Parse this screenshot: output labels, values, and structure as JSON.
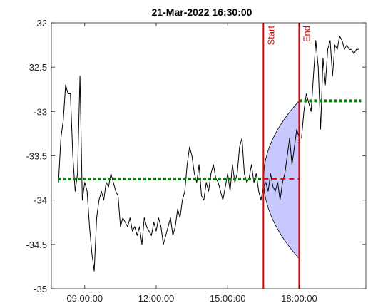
{
  "chart_data": {
    "type": "line",
    "title": "21-Mar-2022 16:30:00",
    "xlabel": "",
    "ylabel": "",
    "x_unit": "hours",
    "xlim": [
      7.6,
      20.8
    ],
    "ylim": [
      -35,
      -32
    ],
    "xticks": [
      {
        "value": 9,
        "label": "09:00:00"
      },
      {
        "value": 12,
        "label": "12:00:00"
      },
      {
        "value": 15,
        "label": "15:00:00"
      },
      {
        "value": 18,
        "label": "18:00:00"
      }
    ],
    "yticks": [
      {
        "value": -32,
        "label": "-32"
      },
      {
        "value": -32.5,
        "label": "-32.5"
      },
      {
        "value": -33,
        "label": "-33"
      },
      {
        "value": -33.5,
        "label": "-33.5"
      },
      {
        "value": -34,
        "label": "-34"
      },
      {
        "value": -34.5,
        "label": "-34.5"
      },
      {
        "value": -35,
        "label": "-35"
      }
    ],
    "grid": false,
    "series": [
      {
        "color": "#000000",
        "x": [
          7.9,
          8.0,
          8.1,
          8.2,
          8.3,
          8.4,
          8.5,
          8.6,
          8.7,
          8.8,
          8.9,
          9.0,
          9.1,
          9.2,
          9.3,
          9.4,
          9.5,
          9.6,
          9.7,
          9.8,
          9.9,
          10.0,
          10.1,
          10.2,
          10.3,
          10.4,
          10.5,
          10.6,
          10.7,
          10.8,
          10.9,
          11.0,
          11.1,
          11.2,
          11.3,
          11.4,
          11.5,
          11.6,
          11.7,
          11.8,
          11.9,
          12.0,
          12.1,
          12.2,
          12.3,
          12.4,
          12.5,
          12.6,
          12.7,
          12.8,
          12.9,
          13.0,
          13.1,
          13.2,
          13.3,
          13.4,
          13.5,
          13.6,
          13.7,
          13.8,
          13.9,
          14.0,
          14.1,
          14.2,
          14.3,
          14.4,
          14.5,
          14.6,
          14.7,
          14.8,
          14.9,
          15.0,
          15.1,
          15.2,
          15.3,
          15.4,
          15.5,
          15.6,
          15.7,
          15.8,
          15.9,
          16.0,
          16.1,
          16.2,
          16.3,
          16.4,
          16.5,
          16.6,
          16.7,
          16.8,
          16.9,
          17.0,
          17.1,
          17.2,
          17.3,
          17.4,
          17.5,
          17.6,
          17.7,
          17.8,
          17.9,
          18.0,
          18.1,
          18.2,
          18.3,
          18.4,
          18.5,
          18.6,
          18.7,
          18.8,
          18.9,
          19.0,
          19.1,
          19.2,
          19.3,
          19.4,
          19.5,
          19.6,
          19.7,
          19.8,
          19.9,
          20.0,
          20.1,
          20.2,
          20.3,
          20.4,
          20.5
        ],
        "y": [
          -33.8,
          -33.3,
          -33.1,
          -32.7,
          -32.8,
          -32.8,
          -33.5,
          -33.9,
          -33.7,
          -32.6,
          -34.0,
          -33.8,
          -33.9,
          -34.3,
          -34.6,
          -34.8,
          -34.2,
          -34.0,
          -33.9,
          -34.0,
          -33.8,
          -33.85,
          -33.7,
          -33.8,
          -33.9,
          -33.95,
          -34.3,
          -34.2,
          -34.25,
          -34.3,
          -34.2,
          -34.35,
          -34.3,
          -34.4,
          -34.3,
          -34.5,
          -34.2,
          -34.3,
          -34.35,
          -34.4,
          -34.25,
          -34.35,
          -34.2,
          -34.3,
          -34.5,
          -34.4,
          -34.3,
          -34.2,
          -34.4,
          -34.3,
          -34.1,
          -34.2,
          -34.0,
          -33.9,
          -33.6,
          -33.4,
          -33.5,
          -33.7,
          -33.8,
          -33.6,
          -33.95,
          -34.0,
          -33.8,
          -33.9,
          -33.7,
          -33.6,
          -33.75,
          -33.8,
          -33.9,
          -34.0,
          -33.85,
          -33.7,
          -33.9,
          -33.6,
          -33.8,
          -33.7,
          -33.4,
          -33.3,
          -33.7,
          -33.8,
          -33.75,
          -33.6,
          -33.8,
          -33.7,
          -33.9,
          -34.0,
          -33.85,
          -33.8,
          -33.9,
          -33.7,
          -33.85,
          -33.9,
          -33.8,
          -34.0,
          -33.8,
          -33.7,
          -33.5,
          -33.3,
          -33.6,
          -33.4,
          -33.2,
          -33.3,
          -33.3,
          -33.0,
          -32.8,
          -32.9,
          -33.0,
          -32.6,
          -32.2,
          -32.5,
          -33.2,
          -32.4,
          -32.7,
          -32.3,
          -32.2,
          -32.6,
          -32.25,
          -32.3,
          -32.15,
          -32.2,
          -32.3,
          -32.25,
          -32.3,
          -32.3,
          -32.35,
          -32.3,
          -32.3
        ]
      }
    ],
    "mean_lines": [
      {
        "color": "#008000",
        "x": [
          7.9,
          16.5
        ],
        "y": -33.76
      },
      {
        "color": "#008000",
        "x": [
          18.0,
          20.6
        ],
        "y": -32.88
      }
    ],
    "forecast_line": {
      "color": "#e00000",
      "x": [
        16.5,
        18.0
      ],
      "y": -33.76
    },
    "forecast_cone": {
      "color": "#c8c8ff",
      "x_start": 16.5,
      "x_end": 18.0,
      "upper_end": -32.88,
      "lower_end": -34.66
    },
    "markers": [
      {
        "x": 16.5,
        "label": "Start",
        "color": "#e00000"
      },
      {
        "x": 18.0,
        "label": "End",
        "color": "#e00000"
      }
    ]
  }
}
